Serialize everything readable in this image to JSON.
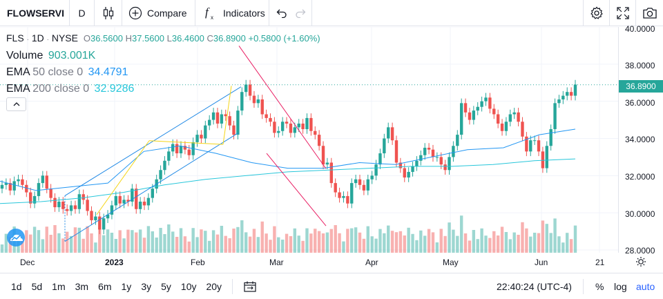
{
  "toolbar": {
    "symbol": "FLOWSERVI",
    "interval": "D",
    "compare_label": "Compare",
    "indicators_label": "Indicators"
  },
  "legend": {
    "ticker": "FLS",
    "interval": "1D",
    "exchange": "NYSE",
    "o_label": "O",
    "o_value": "36.5600",
    "h_label": "H",
    "h_value": "37.5600",
    "l_label": "L",
    "l_value": "36.4600",
    "c_label": "C",
    "c_value": "36.8900",
    "change": "+0.5800 (+1.60%)",
    "volume_label": "Volume",
    "volume_value": "903.001K",
    "ema50_label": "EMA",
    "ema50_params": "50 close 0",
    "ema50_value": "34.4791",
    "ema200_label": "EMA",
    "ema200_params": "200 close 0",
    "ema200_value": "32.9286"
  },
  "price_axis": {
    "labels": [
      "40.0000",
      "38.0000",
      "36.0000",
      "34.0000",
      "32.0000",
      "30.0000",
      "28.0000"
    ],
    "current_price": "36.8900"
  },
  "time_axis": {
    "labels": [
      "Dec",
      "2023",
      "Feb",
      "Mar",
      "Apr",
      "May",
      "Jun",
      "21"
    ]
  },
  "bottom_bar": {
    "ranges": [
      "1d",
      "5d",
      "1m",
      "3m",
      "6m",
      "1y",
      "3y",
      "5y",
      "10y",
      "20y"
    ],
    "clock": "22:40:24 (UTC-4)",
    "percent_label": "%",
    "log_label": "log",
    "auto_label": "auto"
  },
  "colors": {
    "up": "#26a69a",
    "down": "#ef5350",
    "ema50": "#2196f3",
    "ema200": "#26c6da",
    "trend_channel": "#1e88e5",
    "pink_line": "#e91e63",
    "yellow_line": "#f5d515",
    "active_blue": "#2962ff"
  },
  "chart_data": {
    "type": "candlestick",
    "title": "FLS · 1D · NYSE",
    "ylim": [
      28,
      40
    ],
    "y_ticks": [
      28,
      30,
      32,
      34,
      36,
      38,
      40
    ],
    "x_labels": [
      "Dec",
      "2023",
      "Feb",
      "Mar",
      "Apr",
      "May",
      "Jun",
      "21"
    ],
    "close_approx": [
      31.5,
      31.6,
      31.2,
      31.7,
      31.8,
      31.5,
      31.1,
      30.5,
      30.9,
      31.6,
      32.0,
      31.3,
      30.8,
      30.3,
      30.6,
      30.2,
      30.1,
      30.4,
      30.2,
      31.0,
      30.7,
      30.1,
      29.6,
      29.8,
      29.1,
      29.7,
      29.9,
      30.4,
      30.9,
      30.5,
      30.7,
      30.6,
      31.3,
      30.2,
      30.6,
      30.4,
      30.8,
      31.3,
      31.8,
      32.3,
      32.8,
      33.3,
      33.7,
      33.2,
      33.6,
      33.4,
      33.1,
      33.8,
      34.2,
      34.0,
      34.7,
      35.0,
      35.4,
      34.8,
      35.3,
      35.2,
      34.7,
      34.2,
      35.5,
      36.5,
      36.9,
      36.3,
      35.9,
      36.1,
      35.3,
      35.1,
      34.9,
      34.3,
      34.4,
      34.9,
      34.8,
      34.3,
      34.6,
      34.8,
      34.5,
      35.1,
      34.4,
      34.2,
      33.6,
      32.6,
      32.7,
      31.6,
      31.1,
      30.8,
      30.9,
      30.5,
      31.6,
      31.8,
      31.5,
      31.2,
      31.8,
      32.0,
      32.6,
      33.2,
      34.0,
      34.6,
      33.9,
      32.7,
      32.4,
      31.9,
      32.2,
      32.5,
      32.8,
      33.1,
      33.5,
      33.4,
      33.0,
      33.0,
      32.6,
      32.3,
      33.0,
      33.6,
      34.2,
      35.9,
      35.4,
      35.0,
      35.5,
      35.7,
      36.0,
      36.2,
      35.6,
      35.3,
      34.8,
      34.4,
      34.9,
      35.3,
      35.4,
      34.9,
      34.1,
      33.3,
      33.9,
      33.9,
      33.3,
      32.4,
      33.6,
      34.5,
      35.9,
      36.1,
      36.3,
      36.5,
      36.3,
      36.9
    ],
    "ema50_approx": [
      31.7,
      31.2,
      31.4,
      31.6,
      33.3,
      33.6,
      33.2,
      32.7,
      32.4,
      32.4,
      32.7,
      32.6,
      33.0,
      33.4,
      33.5,
      34.2,
      34.5
    ],
    "ema200_approx": [
      30.5,
      30.6,
      30.8,
      31.1,
      31.5,
      31.8,
      32.0,
      32.2,
      32.3,
      32.4,
      32.5,
      32.5,
      32.6,
      32.8,
      32.9
    ],
    "volume_max_approx": "2.5M"
  }
}
